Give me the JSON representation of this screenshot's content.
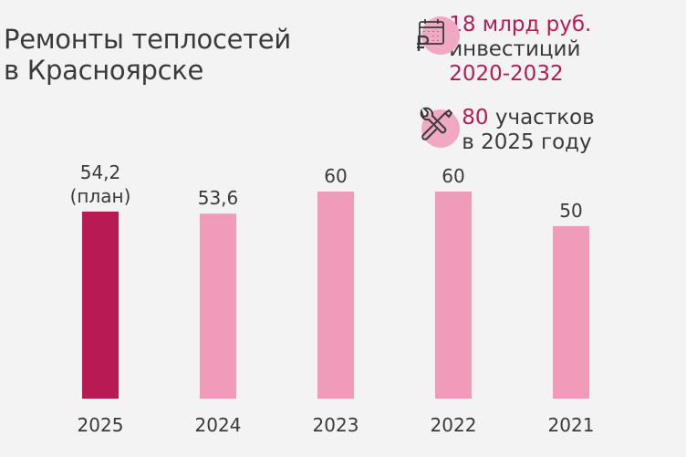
{
  "title": {
    "line1": "Ремонты теплосетей",
    "line2": "в Красноярске"
  },
  "info_investment": {
    "icon": "calendar-ruble-icon",
    "amount": "18 млрд руб.",
    "label": "инвестиций",
    "period": "2020-2032"
  },
  "info_sections": {
    "icon": "wrench-screwdriver-icon",
    "count": "80",
    "label": "участков",
    "year_line": "в 2025 году"
  },
  "colors": {
    "highlight": "#b81b53",
    "bar_default": "#f19bbb",
    "bar_highlight": "#b81b53",
    "text": "#3a3a3a",
    "icon_circle": "#f1a9c3"
  },
  "chart_data": {
    "type": "bar",
    "categories": [
      "2025",
      "2024",
      "2023",
      "2022",
      "2021"
    ],
    "values": [
      54.2,
      53.6,
      60,
      60,
      50
    ],
    "value_labels": [
      "54,2",
      "53,6",
      "60",
      "60",
      "50"
    ],
    "value_notes": [
      "(план)",
      "",
      "",
      "",
      ""
    ],
    "highlight_index": 0,
    "ylim": [
      0,
      60
    ]
  }
}
